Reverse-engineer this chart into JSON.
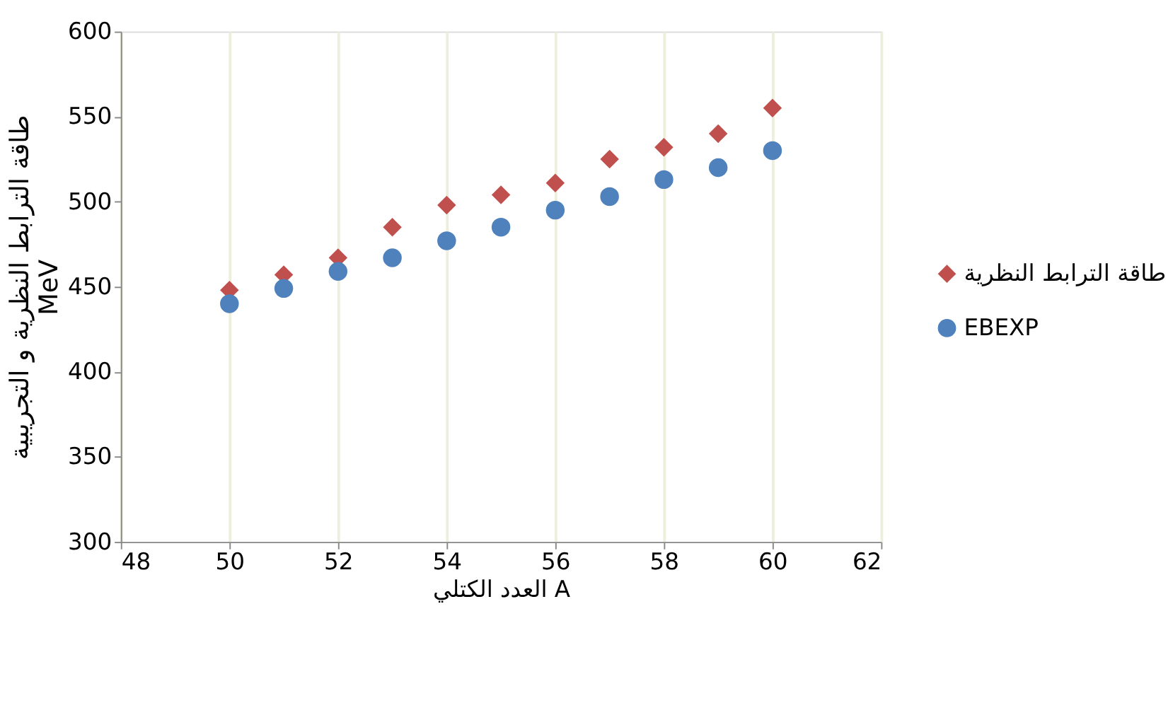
{
  "chart_data": {
    "type": "scatter",
    "xlabel": "العدد الكتلي A",
    "ylabel": "طاقة الترابط النظرية و التجريبية\nMeV",
    "x": [
      50,
      51,
      52,
      53,
      54,
      55,
      56,
      57,
      58,
      59,
      60
    ],
    "series": [
      {
        "name": "طاقة الترابط النظرية",
        "color": "#c0504d",
        "marker": "diamond",
        "values": [
          448,
          457,
          467,
          485,
          498,
          504,
          511,
          525,
          532,
          540,
          555
        ]
      },
      {
        "name": "EBEXP",
        "color": "#4f81bd",
        "marker": "circle",
        "values": [
          440,
          449,
          459,
          467,
          477,
          485,
          495,
          503,
          513,
          520,
          530
        ]
      }
    ],
    "xlim": [
      48,
      62
    ],
    "xticks": [
      48,
      50,
      52,
      54,
      56,
      58,
      60,
      62
    ],
    "ylim": [
      300,
      600
    ],
    "yticks": [
      300,
      350,
      400,
      450,
      500,
      550,
      600
    ],
    "grid": "x",
    "legend": "right"
  }
}
